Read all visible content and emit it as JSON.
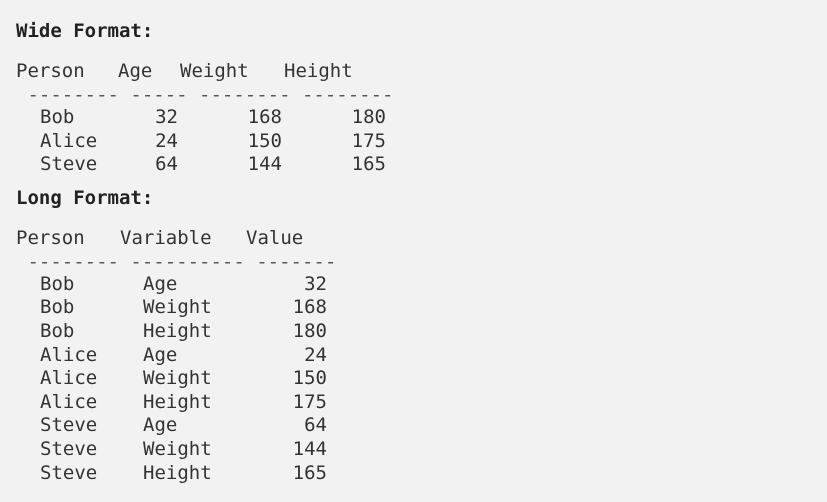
{
  "wide": {
    "heading": "Wide Format:",
    "columns": [
      "Person",
      "Age",
      "Weight",
      "Height"
    ],
    "rule": " -------- ----- -------- --------",
    "rows": [
      {
        "person": "Bob",
        "age": "32",
        "weight": "168",
        "height": "180"
      },
      {
        "person": "Alice",
        "age": "24",
        "weight": "150",
        "height": "175"
      },
      {
        "person": "Steve",
        "age": "64",
        "weight": "144",
        "height": "165"
      }
    ]
  },
  "long": {
    "heading": "Long Format:",
    "columns": [
      "Person",
      "Variable",
      "Value"
    ],
    "rule": " -------- ---------- -------",
    "rows": [
      {
        "person": "Bob",
        "variable": "Age",
        "value": "32"
      },
      {
        "person": "Bob",
        "variable": "Weight",
        "value": "168"
      },
      {
        "person": "Bob",
        "variable": "Height",
        "value": "180"
      },
      {
        "person": "Alice",
        "variable": "Age",
        "value": "24"
      },
      {
        "person": "Alice",
        "variable": "Weight",
        "value": "150"
      },
      {
        "person": "Alice",
        "variable": "Height",
        "value": "175"
      },
      {
        "person": "Steve",
        "variable": "Age",
        "value": "64"
      },
      {
        "person": "Steve",
        "variable": "Weight",
        "value": "144"
      },
      {
        "person": "Steve",
        "variable": "Height",
        "value": "165"
      }
    ]
  }
}
